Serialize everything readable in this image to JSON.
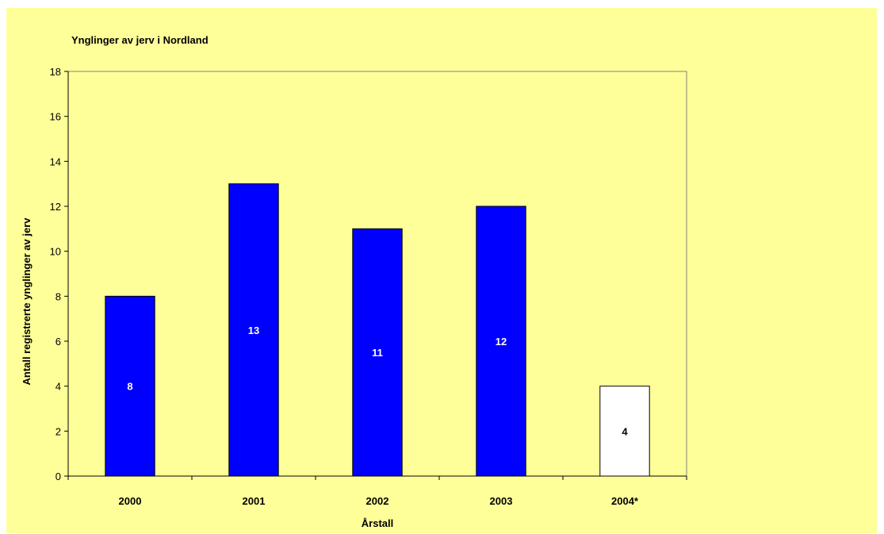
{
  "chart_data": {
    "type": "bar",
    "title": "Ynglinger av jerv i Nordland",
    "xlabel": "Årstall",
    "ylabel": "Antall registrerte ynglinger av jerv",
    "categories": [
      "2000",
      "2001",
      "2002",
      "2003",
      "2004*"
    ],
    "values": [
      8,
      13,
      11,
      12,
      4
    ],
    "data_labels": [
      "8",
      "13",
      "11",
      "12",
      "4"
    ],
    "ylim": [
      0,
      18
    ],
    "yticks": [
      0,
      2,
      4,
      6,
      8,
      10,
      12,
      14,
      16,
      18
    ],
    "grid": false,
    "legend": "none",
    "colors": {
      "background": "#ffff99",
      "plot_area": "#ffff99",
      "bar_fill": "#0000ff",
      "bar_fill_last": "#ffffff",
      "bar_stroke": "#000000",
      "label_on_filled": "#ffffff",
      "label_on_empty": "#000000"
    }
  }
}
